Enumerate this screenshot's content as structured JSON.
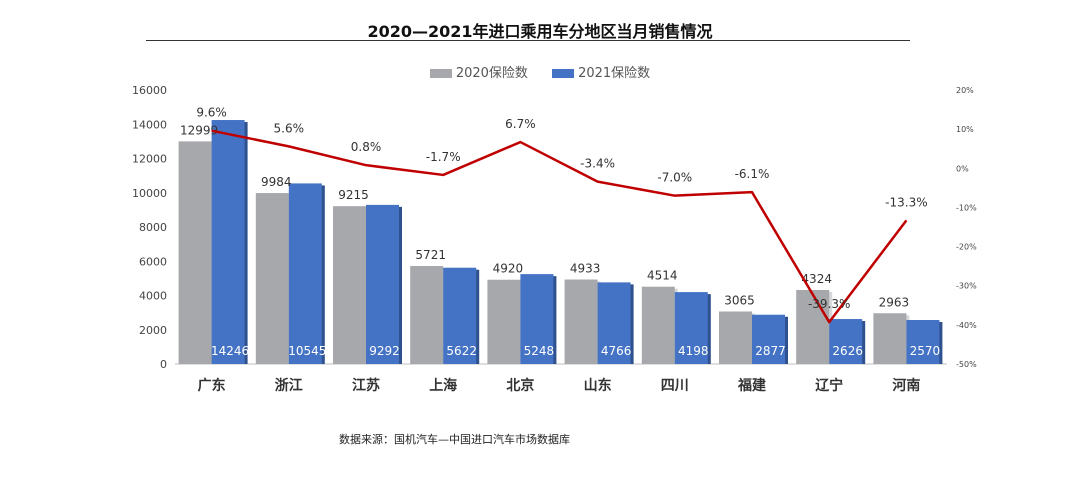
{
  "chart_data": {
    "type": "bar",
    "title": "2020—2021年进口乘用车分地区当月销售情况",
    "categories": [
      "广东",
      "浙江",
      "江苏",
      "上海",
      "北京",
      "山东",
      "四川",
      "福建",
      "辽宁",
      "河南"
    ],
    "series": [
      {
        "name": "2020保险数",
        "values": [
          12999,
          9984,
          9215,
          5721,
          4920,
          4933,
          4514,
          3065,
          4324,
          2963
        ],
        "color": "#a6a8ab"
      },
      {
        "name": "2021保险数",
        "values": [
          14246,
          10545,
          9292,
          5622,
          5248,
          4766,
          4198,
          2877,
          2626,
          2570
        ],
        "color": "#4472c4"
      }
    ],
    "growth": {
      "values": [
        9.6,
        5.6,
        0.8,
        -1.7,
        6.7,
        -3.4,
        -7.0,
        -6.1,
        -39.3,
        -13.3
      ],
      "labels": [
        "9.6%",
        "5.6%",
        "0.8%",
        "-1.7%",
        "6.7%",
        "-3.4%",
        "-7.0%",
        "-6.1%",
        "-39.3%",
        "-13.3%"
      ],
      "color": "#c00000"
    },
    "ylim": [
      0,
      16000
    ],
    "y_ticks": [
      "0",
      "2000",
      "4000",
      "6000",
      "8000",
      "10000",
      "12000",
      "14000",
      "16000"
    ],
    "y2lim": [
      -50,
      20
    ],
    "y2_ticks": [
      "-50%",
      "-40%",
      "-30%",
      "-20%",
      "-10%",
      "0%",
      "10%",
      "20%"
    ],
    "legend_position": "top",
    "grid": false
  },
  "source_note": "数据来源：国机汽车—中国进口汽车市场数据库"
}
